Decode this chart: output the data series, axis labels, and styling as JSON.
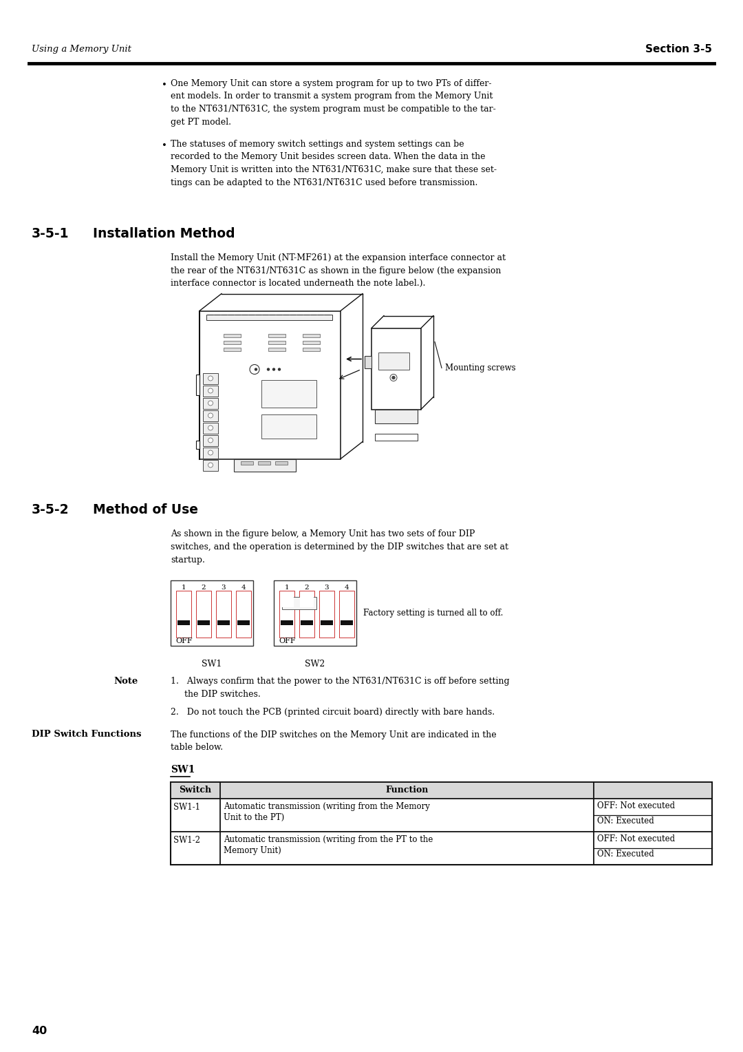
{
  "page_number": "40",
  "header_left": "Using a Memory Unit",
  "header_right": "Section 3-5",
  "bg_color": "#ffffff",
  "bullet_text_1_line1": "One Memory Unit can store a system program for up to two PTs of differ-",
  "bullet_text_1_line2": "ent models. In order to transmit a system program from the Memory Unit",
  "bullet_text_1_line3": "to the NT631/NT631C, the system program must be compatible to the tar-",
  "bullet_text_1_line4": "get PT model.",
  "bullet_text_2_line1": "The statuses of memory switch settings and system settings can be",
  "bullet_text_2_line2": "recorded to the Memory Unit besides screen data. When the data in the",
  "bullet_text_2_line3": "Memory Unit is written into the NT631/NT631C, make sure that these set-",
  "bullet_text_2_line4": "tings can be adapted to the NT631/NT631C used before transmission.",
  "section_351_num": "3-5-1",
  "section_351_title": "Installation Method",
  "section_351_body_1": "Install the Memory Unit (NT-MF261) at the expansion interface connector at",
  "section_351_body_2": "the rear of the NT631/NT631C as shown in the figure below (the expansion",
  "section_351_body_3": "interface connector is located underneath the note label.).",
  "mounting_label": "Mounting screws",
  "section_352_num": "3-5-2",
  "section_352_title": "Method of Use",
  "section_352_body_1": "As shown in the figure below, a Memory Unit has two sets of four DIP",
  "section_352_body_2": "switches, and the operation is determined by the DIP switches that are set at",
  "section_352_body_3": "startup.",
  "factory_setting_label": "Factory setting is turned all to off.",
  "sw1_label": "SW1",
  "sw2_label": "SW2",
  "off_label": "OFF",
  "note_label": "Note",
  "note_1a": "1.   Always confirm that the power to the NT631/NT631C is off before setting",
  "note_1b": "     the DIP switches.",
  "note_2": "2.   Do not touch the PCB (printed circuit board) directly with bare hands.",
  "dip_switch_title": "DIP Switch Functions",
  "dip_body_1": "The functions of the DIP switches on the Memory Unit are indicated in the",
  "dip_body_2": "table below.",
  "sw1_underline": "SW1",
  "col1_header": "Switch",
  "col2_header": "Function",
  "row1_col1": "SW1-1",
  "row1_col2a": "Automatic transmission (writing from the Memory",
  "row1_col2b": "Unit to the PT)",
  "row1_col3a": "OFF: Not executed",
  "row1_col3b": "ON: Executed",
  "row2_col1": "SW1-2",
  "row2_col2a": "Automatic transmission (writing from the PT to the",
  "row2_col2b": "Memory Unit)",
  "row2_col3a": "OFF: Not executed",
  "row2_col3b": "ON: Executed"
}
